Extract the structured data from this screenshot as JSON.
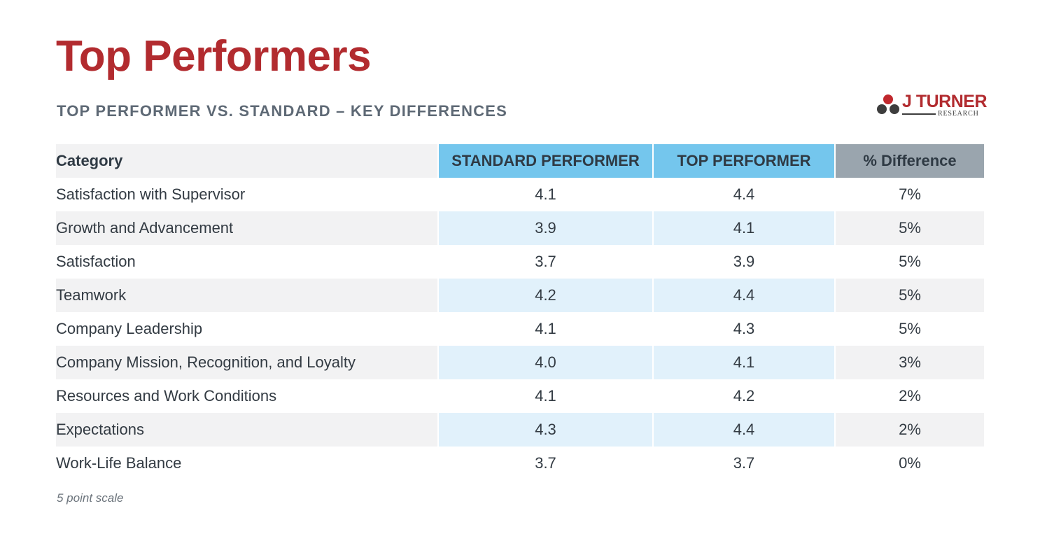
{
  "header": {
    "title": "Top Performers",
    "subtitle": "TOP PERFORMER VS. STANDARD – KEY DIFFERENCES"
  },
  "logo": {
    "word": "J TURNER",
    "sub": "RESEARCH",
    "colors": {
      "dot_red": "#c0282d",
      "dot_dark": "#3d3d3d"
    }
  },
  "table": {
    "headers": {
      "category": "Category",
      "standard": "STANDARD PERFORMER",
      "top": "TOP PERFORMER",
      "diff": "% Difference"
    },
    "rows": [
      {
        "category": "Satisfaction with Supervisor",
        "standard": "4.1",
        "top": "4.4",
        "diff": "7%"
      },
      {
        "category": "Growth and Advancement",
        "standard": "3.9",
        "top": "4.1",
        "diff": "5%"
      },
      {
        "category": "Satisfaction",
        "standard": "3.7",
        "top": "3.9",
        "diff": "5%"
      },
      {
        "category": "Teamwork",
        "standard": "4.2",
        "top": "4.4",
        "diff": "5%"
      },
      {
        "category": "Company Leadership",
        "standard": "4.1",
        "top": "4.3",
        "diff": "5%"
      },
      {
        "category": "Company Mission, Recognition, and Loyalty",
        "standard": "4.0",
        "top": "4.1",
        "diff": "3%"
      },
      {
        "category": "Resources and Work Conditions",
        "standard": "4.1",
        "top": "4.2",
        "diff": "2%"
      },
      {
        "category": "Expectations",
        "standard": "4.3",
        "top": "4.4",
        "diff": "2%"
      },
      {
        "category": "Work-Life Balance",
        "standard": "3.7",
        "top": "3.7",
        "diff": "0%"
      }
    ]
  },
  "footnote": "5 point scale",
  "colors": {
    "title_red": "#b22b2f",
    "header_blue": "#74c6ed",
    "header_gray": "#9aa5ae",
    "row_blue": "#e1f1fb",
    "row_gray": "#f2f2f3"
  }
}
